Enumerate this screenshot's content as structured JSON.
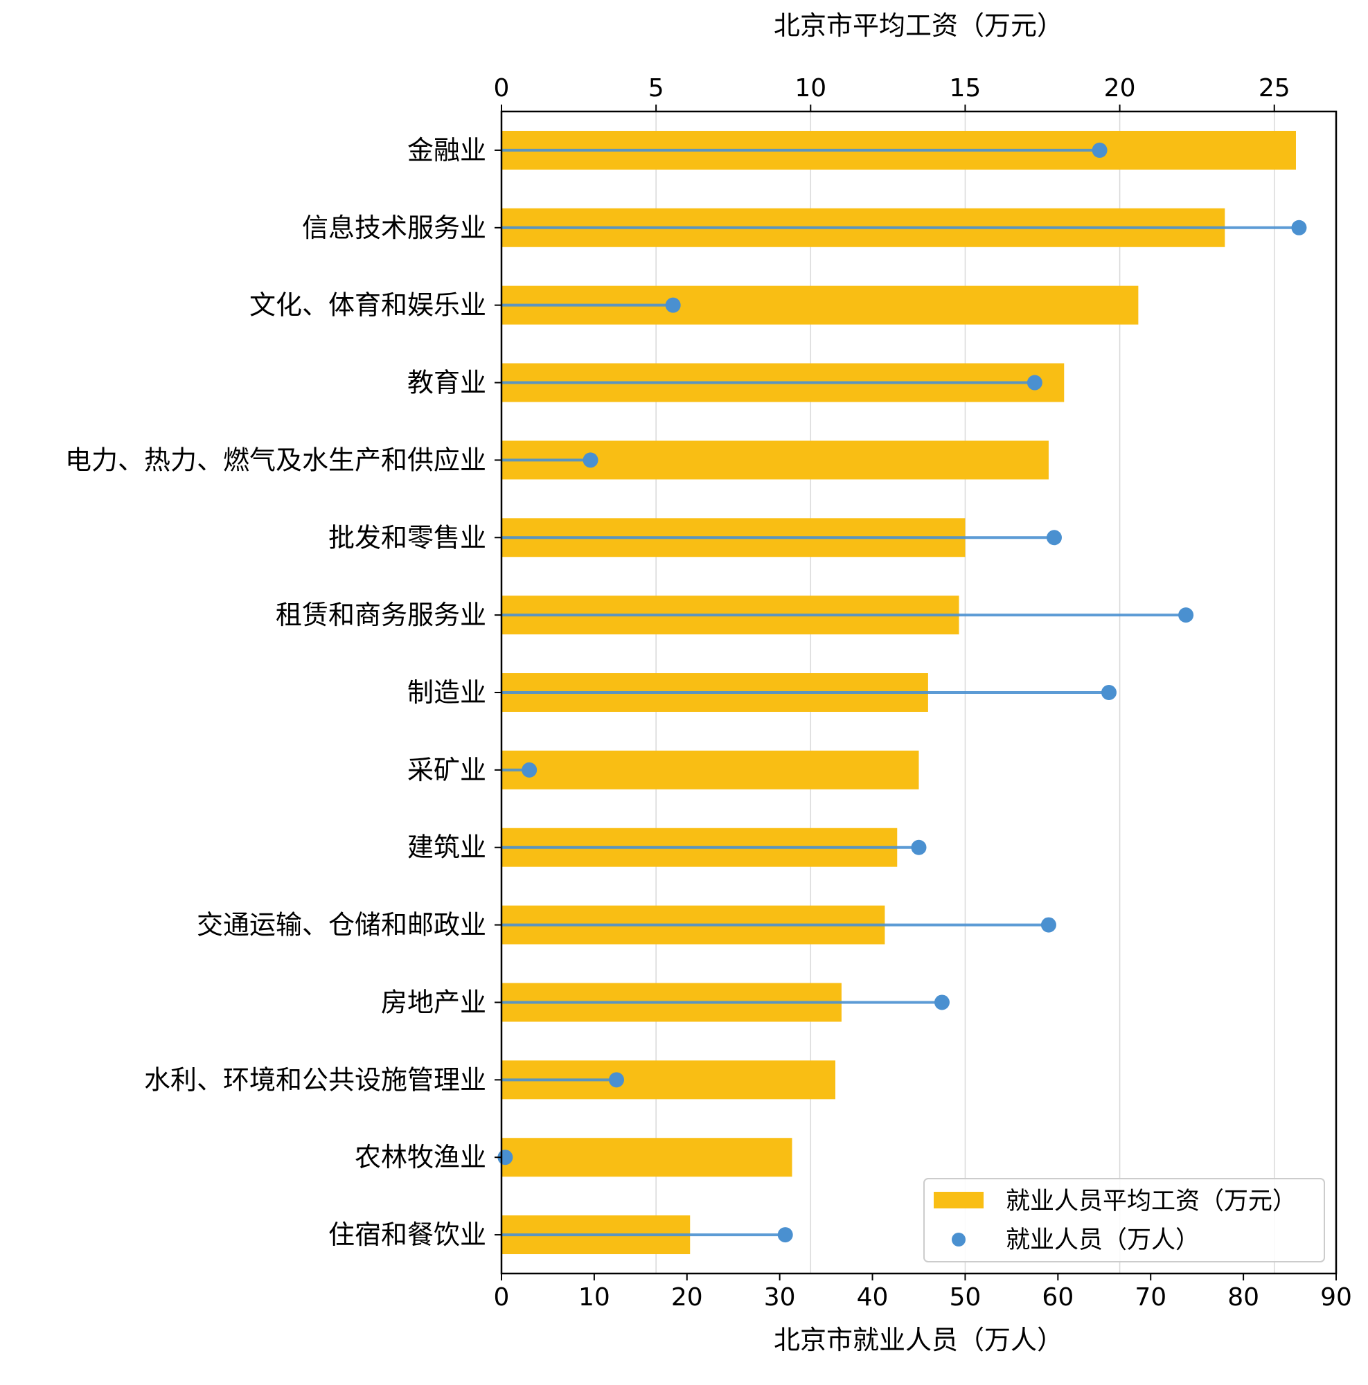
{
  "chart_data": {
    "type": "bar",
    "orientation": "horizontal",
    "categories": [
      "金融业",
      "信息技术服务业",
      "文化、体育和娱乐业",
      "教育业",
      "电力、热力、燃气及水生产和供应业",
      "批发和零售业",
      "租赁和商务服务业",
      "制造业",
      "采矿业",
      "建筑业",
      "交通运输、仓储和邮政业",
      "房地产业",
      "水利、环境和公共设施管理业",
      "农林牧渔业",
      "住宿和餐饮业"
    ],
    "series": [
      {
        "name": "就业人员平均工资（万元）",
        "type": "bar",
        "axis": "top",
        "color": "#F9BE14",
        "values": [
          25.7,
          23.4,
          20.6,
          18.2,
          17.7,
          15.0,
          14.8,
          13.8,
          13.5,
          12.8,
          12.4,
          11.0,
          10.8,
          9.4,
          6.1
        ]
      },
      {
        "name": "就业人员（万人）",
        "type": "lollipop",
        "axis": "bottom",
        "color": "#4A90D0",
        "values": [
          64.5,
          86.0,
          18.5,
          57.5,
          9.6,
          59.6,
          73.8,
          65.5,
          3.0,
          45.0,
          59.0,
          47.5,
          12.4,
          0.4,
          30.6
        ]
      }
    ],
    "top_axis": {
      "label": "北京市平均工资（万元）",
      "lim": [
        0,
        27
      ],
      "ticks": [
        0,
        5,
        10,
        15,
        20,
        25
      ]
    },
    "bottom_axis": {
      "label": "北京市就业人员（万人）",
      "lim": [
        0,
        90
      ],
      "ticks": [
        0,
        10,
        20,
        30,
        40,
        50,
        60,
        70,
        80,
        90
      ]
    },
    "grid": "vertical",
    "legend": "lower-right"
  }
}
